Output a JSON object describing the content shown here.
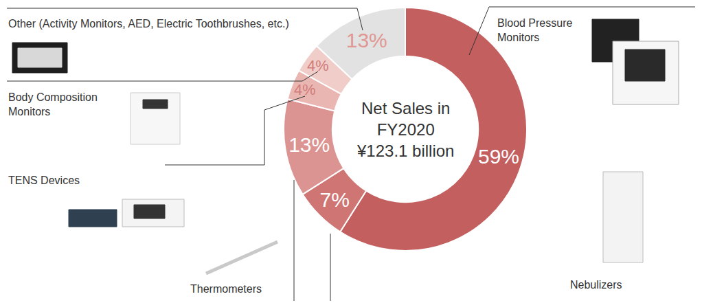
{
  "chart_data": {
    "type": "pie",
    "title": [
      "Net Sales in",
      "FY2020",
      "¥123.1 billion"
    ],
    "categories": [
      "Blood Pressure Monitors",
      "Nebulizers",
      "Thermometers",
      "TENS Devices",
      "Body Composition Monitors",
      "Other (Activity Monitors, AED, Electric Toothbrushes, etc.)"
    ],
    "values": [
      59,
      7,
      13,
      4,
      4,
      13
    ],
    "value_labels": [
      "59%",
      "7%",
      "13%",
      "4%",
      "4%",
      "13%"
    ],
    "colors": [
      "#c45f5f",
      "#cf7674",
      "#db9492",
      "#eab6b2",
      "#f1cdc9",
      "#e2e2e2"
    ],
    "data_labels": true
  }
}
